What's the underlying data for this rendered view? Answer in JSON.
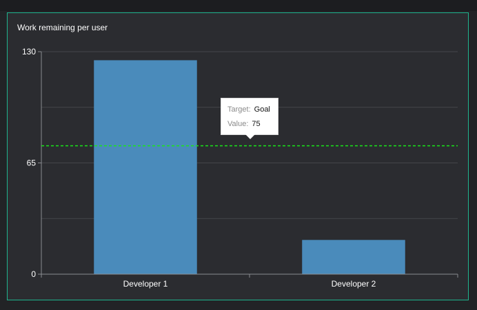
{
  "chart_data": {
    "type": "bar",
    "title": "Work remaining per user",
    "categories": [
      "Developer 1",
      "Developer 2"
    ],
    "values": [
      125,
      20
    ],
    "ylim": [
      0,
      130
    ],
    "yticks": [
      0,
      65,
      130
    ],
    "grid": true,
    "target_line": {
      "name": "Goal",
      "value": 75
    },
    "tooltip": {
      "target_label": "Target:",
      "target_value": "Goal",
      "value_label": "Value:",
      "value_value": "75"
    }
  },
  "colors": {
    "bar": "#4a8bbb",
    "target": "#19e619",
    "grid": "#44464b",
    "axis": "#8a8c91",
    "frame": "#1fb58f"
  }
}
